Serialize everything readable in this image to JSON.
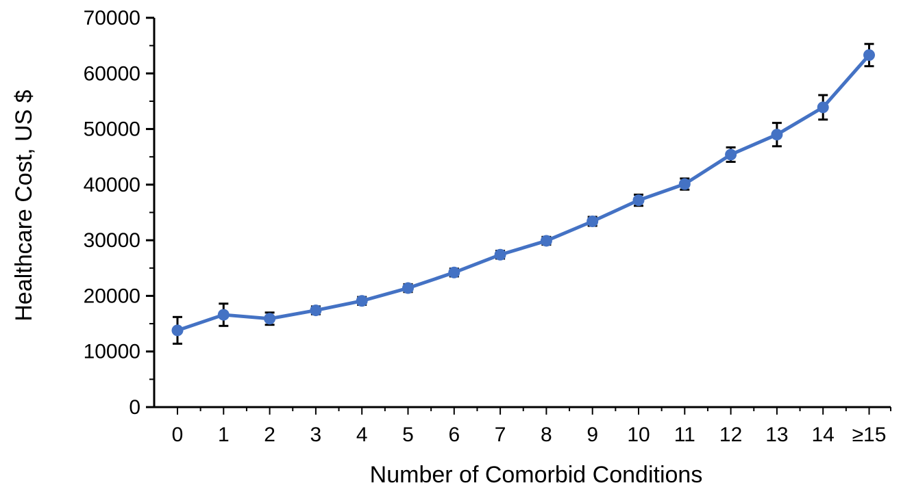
{
  "chart_data": {
    "type": "line",
    "title": "",
    "xlabel": "Number of Comorbid Conditions",
    "ylabel": "Healthcare Cost, US $",
    "categories": [
      "0",
      "1",
      "2",
      "3",
      "4",
      "5",
      "6",
      "7",
      "8",
      "9",
      "10",
      "11",
      "12",
      "13",
      "14",
      "≥15"
    ],
    "series": [
      {
        "values": [
          13800,
          16600,
          15900,
          17400,
          19100,
          21400,
          24200,
          27400,
          29900,
          33400,
          37200,
          40100,
          45400,
          49000,
          53900,
          63300
        ],
        "error": [
          2400,
          2000,
          1100,
          700,
          700,
          700,
          700,
          700,
          700,
          800,
          1000,
          1000,
          1300,
          2100,
          2200,
          2000
        ]
      }
    ],
    "ylim": [
      0,
      70000
    ],
    "yticks": [
      0,
      10000,
      20000,
      30000,
      40000,
      50000,
      60000,
      70000
    ],
    "grid": false,
    "colors": {
      "line": "#4472C4",
      "error_bar": "#000000",
      "axis": "#000000"
    }
  }
}
